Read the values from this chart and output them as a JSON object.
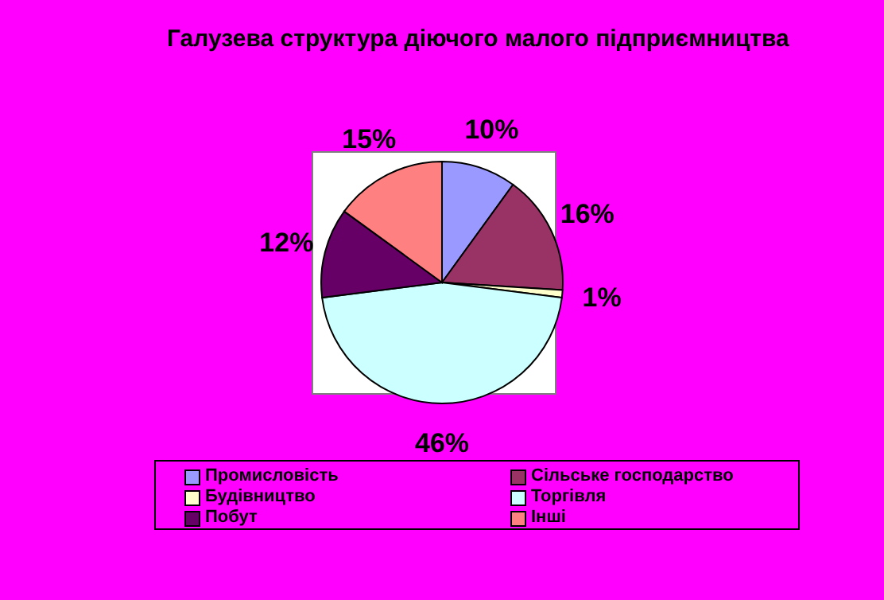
{
  "chart_data": {
    "type": "pie",
    "title": "Галузева структура діючого малого підприємництва",
    "categories": [
      "Промисловість",
      "Сільське господарство",
      "Будівництво",
      "Торгівля",
      "Побут",
      "Інші"
    ],
    "values": [
      10,
      16,
      1,
      46,
      12,
      15
    ],
    "colors": [
      "#9999ff",
      "#993366",
      "#ffffcc",
      "#ccffff",
      "#660066",
      "#ff8080"
    ],
    "value_labels": [
      "10%",
      "16%",
      "1%",
      "46%",
      "12%",
      "15%"
    ],
    "legend": "bottom"
  }
}
